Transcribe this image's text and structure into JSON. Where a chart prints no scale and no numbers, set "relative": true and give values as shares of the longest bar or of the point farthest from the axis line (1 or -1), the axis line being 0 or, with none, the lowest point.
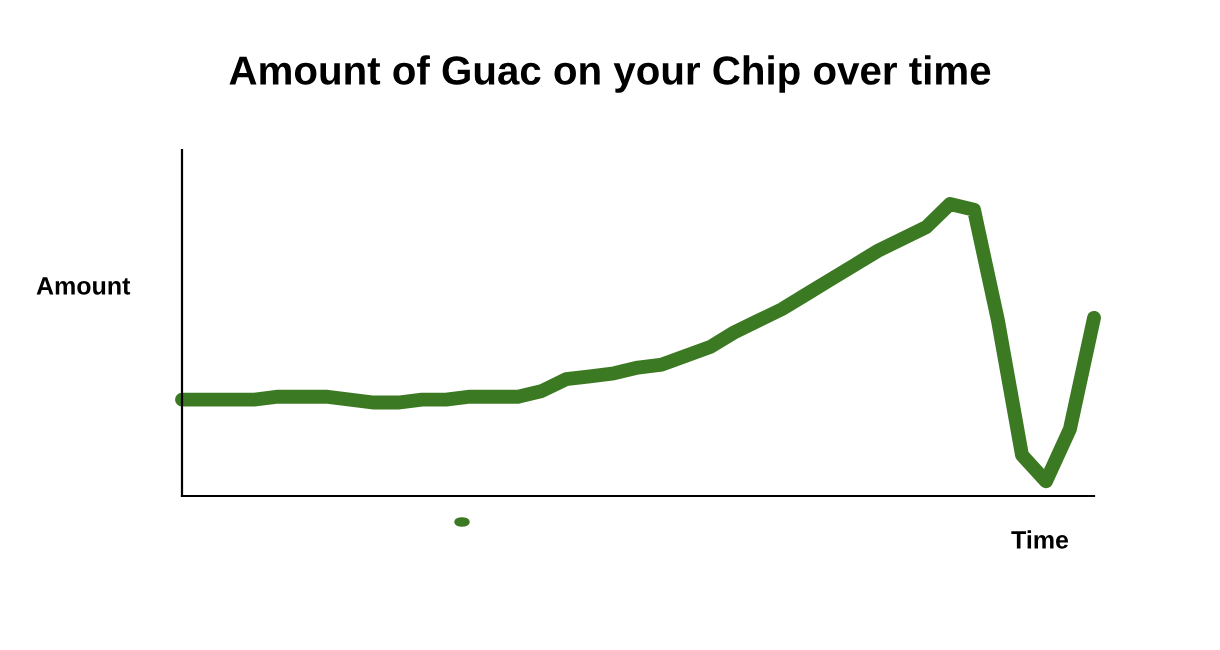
{
  "chart_data": {
    "type": "line",
    "title": "Amount of Guac on your Chip over time",
    "xlabel": "Time",
    "ylabel": "Amount",
    "relative": true,
    "categories": [
      null,
      null,
      null,
      null,
      null,
      null,
      null,
      null,
      null,
      null,
      null,
      null,
      null,
      null,
      null,
      null,
      null,
      null,
      null,
      null,
      null,
      null,
      null,
      null,
      null,
      null,
      null,
      null,
      null,
      null,
      null,
      null,
      null,
      null,
      null,
      null,
      null,
      null,
      null
    ],
    "series": [
      {
        "color": "#3b7a23",
        "values": [
          0.33,
          0.33,
          0.33,
          0.33,
          0.34,
          0.34,
          0.34,
          0.33,
          0.32,
          0.32,
          0.33,
          0.33,
          0.34,
          0.34,
          0.34,
          0.36,
          0.4,
          0.41,
          0.42,
          0.44,
          0.45,
          0.48,
          0.51,
          0.56,
          0.6,
          0.64,
          0.69,
          0.74,
          0.79,
          0.84,
          0.88,
          0.92,
          1.0,
          0.98,
          0.6,
          0.14,
          0.05,
          0.23,
          0.61
        ]
      }
    ],
    "legend": false,
    "marker": "none",
    "line_style": "solid"
  }
}
